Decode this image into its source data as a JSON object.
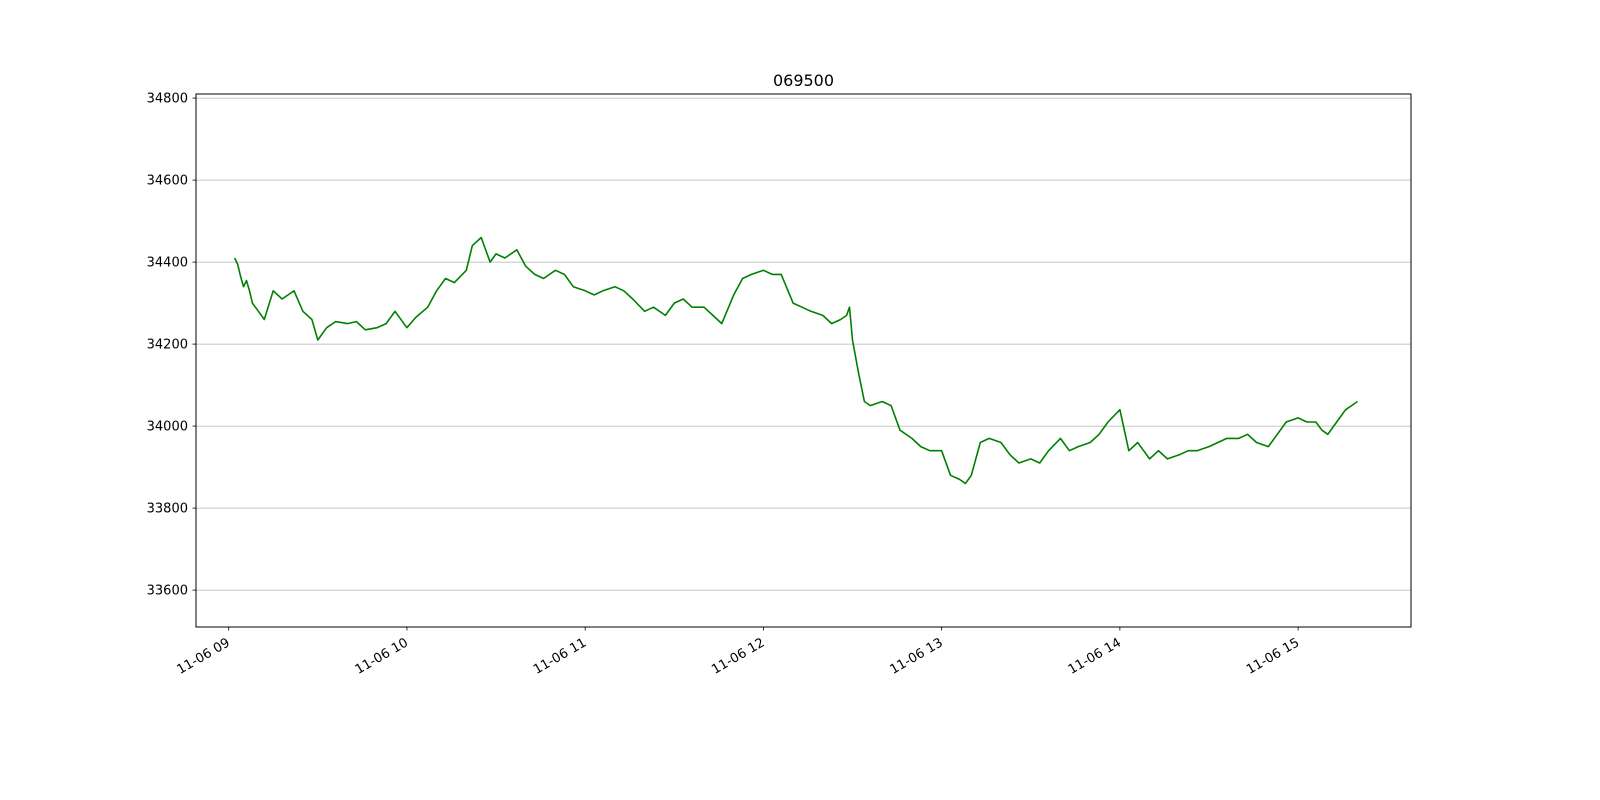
{
  "chart_data": {
    "type": "line",
    "title": "069500",
    "xlabel": "",
    "ylabel": "",
    "x_is_time": true,
    "xlim": [
      "2018-11-06 08:49",
      "2018-11-06 15:38"
    ],
    "ylim": [
      33510,
      34810
    ],
    "x_ticks": [
      {
        "value": "2018-11-06 09:00",
        "label": "11-06 09"
      },
      {
        "value": "2018-11-06 10:00",
        "label": "11-06 10"
      },
      {
        "value": "2018-11-06 11:00",
        "label": "11-06 11"
      },
      {
        "value": "2018-11-06 12:00",
        "label": "11-06 12"
      },
      {
        "value": "2018-11-06 13:00",
        "label": "11-06 13"
      },
      {
        "value": "2018-11-06 14:00",
        "label": "11-06 14"
      },
      {
        "value": "2018-11-06 15:00",
        "label": "11-06 15"
      }
    ],
    "y_ticks": [
      33600,
      33800,
      34000,
      34200,
      34400,
      34600,
      34800
    ],
    "grid": {
      "y": true,
      "x": false
    },
    "line_color": "#008000",
    "series": [
      {
        "x": [
          "2018-11-06 09:02",
          "2018-11-06 09:03",
          "2018-11-06 09:04",
          "2018-11-06 09:05",
          "2018-11-06 09:06",
          "2018-11-06 09:07",
          "2018-11-06 09:08",
          "2018-11-06 09:09",
          "2018-11-06 09:10",
          "2018-11-06 09:12",
          "2018-11-06 09:15",
          "2018-11-06 09:18",
          "2018-11-06 09:20",
          "2018-11-06 09:22",
          "2018-11-06 09:25",
          "2018-11-06 09:28",
          "2018-11-06 09:30",
          "2018-11-06 09:33",
          "2018-11-06 09:36",
          "2018-11-06 09:40",
          "2018-11-06 09:43",
          "2018-11-06 09:46",
          "2018-11-06 09:50",
          "2018-11-06 09:53",
          "2018-11-06 09:56",
          "2018-11-06 10:00",
          "2018-11-06 10:03",
          "2018-11-06 10:07",
          "2018-11-06 10:10",
          "2018-11-06 10:13",
          "2018-11-06 10:16",
          "2018-11-06 10:20",
          "2018-11-06 10:22",
          "2018-11-06 10:25",
          "2018-11-06 10:28",
          "2018-11-06 10:30",
          "2018-11-06 10:33",
          "2018-11-06 10:37",
          "2018-11-06 10:40",
          "2018-11-06 10:43",
          "2018-11-06 10:46",
          "2018-11-06 10:50",
          "2018-11-06 10:53",
          "2018-11-06 10:56",
          "2018-11-06 11:00",
          "2018-11-06 11:03",
          "2018-11-06 11:06",
          "2018-11-06 11:10",
          "2018-11-06 11:13",
          "2018-11-06 11:16",
          "2018-11-06 11:20",
          "2018-11-06 11:23",
          "2018-11-06 11:27",
          "2018-11-06 11:30",
          "2018-11-06 11:33",
          "2018-11-06 11:36",
          "2018-11-06 11:40",
          "2018-11-06 11:43",
          "2018-11-06 11:46",
          "2018-11-06 11:50",
          "2018-11-06 11:53",
          "2018-11-06 11:56",
          "2018-11-06 12:00",
          "2018-11-06 12:03",
          "2018-11-06 12:06",
          "2018-11-06 12:10",
          "2018-11-06 12:13",
          "2018-11-06 12:16",
          "2018-11-06 12:20",
          "2018-11-06 12:23",
          "2018-11-06 12:26",
          "2018-11-06 12:28",
          "2018-11-06 12:29",
          "2018-11-06 12:30",
          "2018-11-06 12:32",
          "2018-11-06 12:34",
          "2018-11-06 12:36",
          "2018-11-06 12:40",
          "2018-11-06 12:43",
          "2018-11-06 12:46",
          "2018-11-06 12:50",
          "2018-11-06 12:53",
          "2018-11-06 12:56",
          "2018-11-06 13:00",
          "2018-11-06 13:03",
          "2018-11-06 13:06",
          "2018-11-06 13:08",
          "2018-11-06 13:10",
          "2018-11-06 13:13",
          "2018-11-06 13:16",
          "2018-11-06 13:20",
          "2018-11-06 13:23",
          "2018-11-06 13:26",
          "2018-11-06 13:30",
          "2018-11-06 13:33",
          "2018-11-06 13:36",
          "2018-11-06 13:40",
          "2018-11-06 13:43",
          "2018-11-06 13:46",
          "2018-11-06 13:50",
          "2018-11-06 13:53",
          "2018-11-06 13:56",
          "2018-11-06 14:00",
          "2018-11-06 14:03",
          "2018-11-06 14:06",
          "2018-11-06 14:10",
          "2018-11-06 14:13",
          "2018-11-06 14:16",
          "2018-11-06 14:20",
          "2018-11-06 14:23",
          "2018-11-06 14:26",
          "2018-11-06 14:30",
          "2018-11-06 14:33",
          "2018-11-06 14:36",
          "2018-11-06 14:40",
          "2018-11-06 14:43",
          "2018-11-06 14:46",
          "2018-11-06 14:50",
          "2018-11-06 14:53",
          "2018-11-06 14:56",
          "2018-11-06 15:00",
          "2018-11-06 15:03",
          "2018-11-06 15:06",
          "2018-11-06 15:08",
          "2018-11-06 15:10",
          "2018-11-06 15:13",
          "2018-11-06 15:16",
          "2018-11-06 15:18",
          "2018-11-06 15:20"
        ],
        "values": [
          34410,
          34395,
          34365,
          34340,
          34355,
          34330,
          34300,
          34290,
          34280,
          34260,
          34330,
          34310,
          34320,
          34330,
          34280,
          34260,
          34210,
          34240,
          34255,
          34250,
          34255,
          34235,
          34240,
          34250,
          34280,
          34240,
          34265,
          34290,
          34330,
          34360,
          34350,
          34380,
          34440,
          34460,
          34400,
          34420,
          34410,
          34430,
          34390,
          34370,
          34360,
          34380,
          34370,
          34340,
          34330,
          34320,
          34330,
          34340,
          34330,
          34310,
          34280,
          34290,
          34270,
          34300,
          34310,
          34290,
          34290,
          34270,
          34250,
          34320,
          34360,
          34370,
          34380,
          34370,
          34370,
          34300,
          34290,
          34280,
          34270,
          34250,
          34260,
          34270,
          34290,
          34210,
          34130,
          34060,
          34050,
          34060,
          34050,
          33990,
          33970,
          33950,
          33940,
          33940,
          33880,
          33870,
          33860,
          33880,
          33960,
          33970,
          33960,
          33930,
          33910,
          33920,
          33910,
          33940,
          33970,
          33940,
          33950,
          33960,
          33980,
          34010,
          34040,
          33940,
          33960,
          33920,
          33940,
          33920,
          33930,
          33940,
          33940,
          33950,
          33960,
          33970,
          33970,
          33980,
          33960,
          33950,
          33980,
          34010,
          34020,
          34010,
          34010,
          33990,
          33980,
          34010,
          34040,
          34050,
          34060
        ]
      }
    ]
  }
}
